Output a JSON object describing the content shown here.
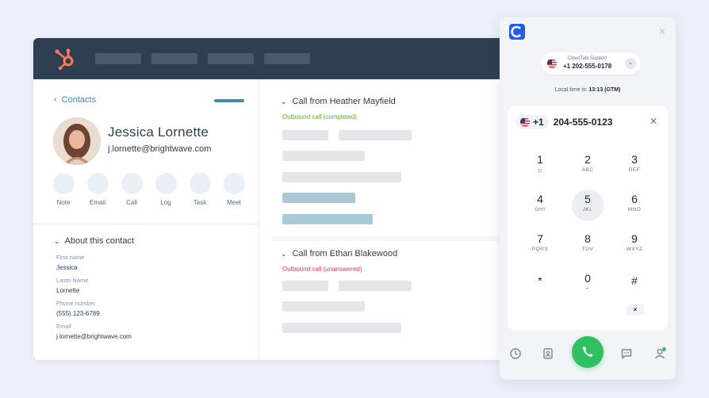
{
  "crm": {
    "back_label": "Contacts",
    "contact": {
      "name": "Jessica Lornette",
      "email": "j.lornette@brightwave.com"
    },
    "actions": [
      "Note",
      "Email",
      "Call",
      "Log",
      "Task",
      "Meet"
    ],
    "about_title": "About this contact",
    "fields": [
      {
        "label": "First name",
        "value": "Jessica"
      },
      {
        "label": "Lastn Name",
        "value": "Lornette"
      },
      {
        "label": "Phone number",
        "value": "(555) 123-6789"
      },
      {
        "label": "Email",
        "value": "j.lornette@brightwave.com"
      }
    ],
    "calls": [
      {
        "title": "Call from Heather Mayfield",
        "status": "Outbound call (completed)",
        "status_color": "#5fae2e"
      },
      {
        "title": "Call from Ethan Blakewood",
        "status": "Outbound call (unanswered)",
        "status_color": "#d83c6b"
      }
    ]
  },
  "dialer": {
    "caller_label": "CloudTalk Support",
    "caller_number": "+1 202-555-0178",
    "local_time_label": "Local time is:",
    "local_time_value": "13:13 (GTM)",
    "country_code": "+1",
    "dialed_number": "204-555-0123",
    "keys": [
      {
        "digit": "1",
        "sub": "voicemail-icon"
      },
      {
        "digit": "2",
        "sub": "ABC"
      },
      {
        "digit": "3",
        "sub": "DEF"
      },
      {
        "digit": "4",
        "sub": "GHI"
      },
      {
        "digit": "5",
        "sub": "JKL"
      },
      {
        "digit": "6",
        "sub": "MNO"
      },
      {
        "digit": "7",
        "sub": "PQRS"
      },
      {
        "digit": "8",
        "sub": "TUV"
      },
      {
        "digit": "9",
        "sub": "WXYZ"
      },
      {
        "digit": "*",
        "sub": ""
      },
      {
        "digit": "0",
        "sub": "+"
      },
      {
        "digit": "#",
        "sub": ""
      }
    ],
    "colors": {
      "brand": "#1f5cf0",
      "call_button": "#2fc15f",
      "crm_header": "#2e3f51",
      "link": "#3f8fa7"
    }
  }
}
